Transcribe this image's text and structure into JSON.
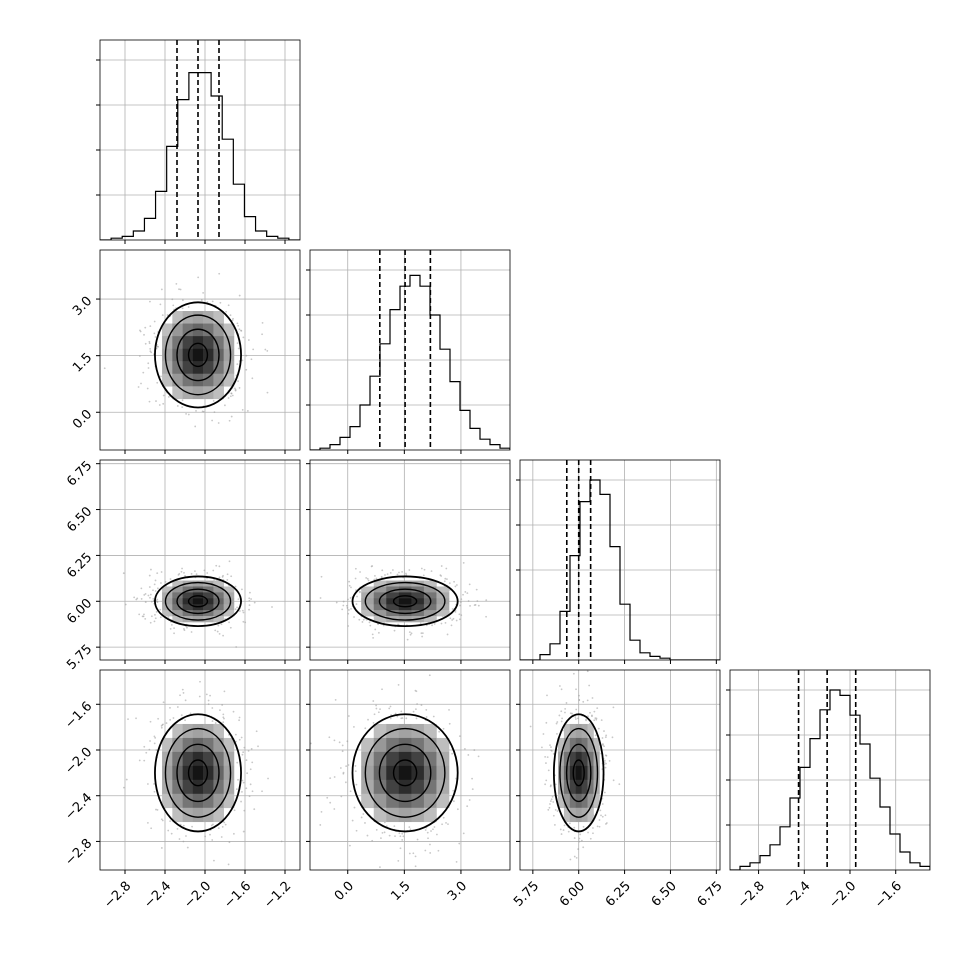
{
  "chart_data": {
    "type": "corner",
    "n_params": 4,
    "axes": [
      {
        "ticks": [
          -2.8,
          -2.4,
          -2.0,
          -1.6,
          -1.2
        ],
        "tick_labels": [
          "−2.8",
          "−2.4",
          "−2.0",
          "−1.6",
          "−1.2"
        ],
        "range": [
          -3.05,
          -1.05
        ],
        "quantiles": [
          -2.28,
          -2.07,
          -1.86
        ]
      },
      {
        "ticks": [
          0.0,
          1.5,
          3.0
        ],
        "tick_labels": [
          "0.0",
          "1.5",
          "3.0"
        ],
        "range": [
          -1.0,
          4.3
        ],
        "quantiles": [
          0.85,
          1.52,
          2.19
        ]
      },
      {
        "ticks": [
          5.75,
          6.0,
          6.25,
          6.5,
          6.75
        ],
        "tick_labels": [
          "5.75",
          "6.00",
          "6.25",
          "6.50",
          "6.75"
        ],
        "range": [
          5.68,
          6.77
        ],
        "quantiles": [
          5.935,
          6.0,
          6.065
        ]
      },
      {
        "ticks": [
          -2.8,
          -2.4,
          -2.0,
          -1.6
        ],
        "tick_labels": [
          "−2.8",
          "−2.4",
          "−2.0",
          "−1.6"
        ],
        "range": [
          -3.05,
          -1.3
        ],
        "quantiles": [
          -2.45,
          -2.2,
          -1.95
        ]
      }
    ],
    "histograms": [
      [
        0,
        1,
        2,
        5,
        12,
        27,
        52,
        78,
        93,
        93,
        80,
        56,
        31,
        13,
        5,
        2,
        1,
        0
      ],
      [
        0,
        1,
        3,
        7,
        13,
        25,
        41,
        59,
        78,
        91,
        97,
        91,
        75,
        56,
        38,
        22,
        12,
        6,
        3,
        1
      ],
      [
        0,
        0,
        3,
        9,
        27,
        58,
        88,
        100,
        92,
        63,
        31,
        11,
        4,
        2,
        1,
        0,
        0,
        0,
        0,
        0
      ],
      [
        0,
        2,
        4,
        8,
        14,
        24,
        40,
        57,
        73,
        89,
        100,
        97,
        86,
        70,
        51,
        35,
        20,
        10,
        4,
        2
      ]
    ],
    "pairs": [
      {
        "row": 1,
        "col": 0,
        "mean": [
          -2.07,
          1.52
        ],
        "sd": [
          0.21,
          0.68
        ]
      },
      {
        "row": 2,
        "col": 0,
        "mean": [
          -2.07,
          6.0
        ],
        "sd": [
          0.21,
          0.066
        ]
      },
      {
        "row": 2,
        "col": 1,
        "mean": [
          1.52,
          6.0
        ],
        "sd": [
          0.68,
          0.066
        ]
      },
      {
        "row": 3,
        "col": 0,
        "mean": [
          -2.07,
          -2.2
        ],
        "sd": [
          0.21,
          0.25
        ]
      },
      {
        "row": 3,
        "col": 1,
        "mean": [
          1.52,
          -2.2
        ],
        "sd": [
          0.68,
          0.25
        ]
      },
      {
        "row": 3,
        "col": 2,
        "mean": [
          6.0,
          -2.2
        ],
        "sd": [
          0.066,
          0.25
        ]
      }
    ],
    "grid": true
  }
}
